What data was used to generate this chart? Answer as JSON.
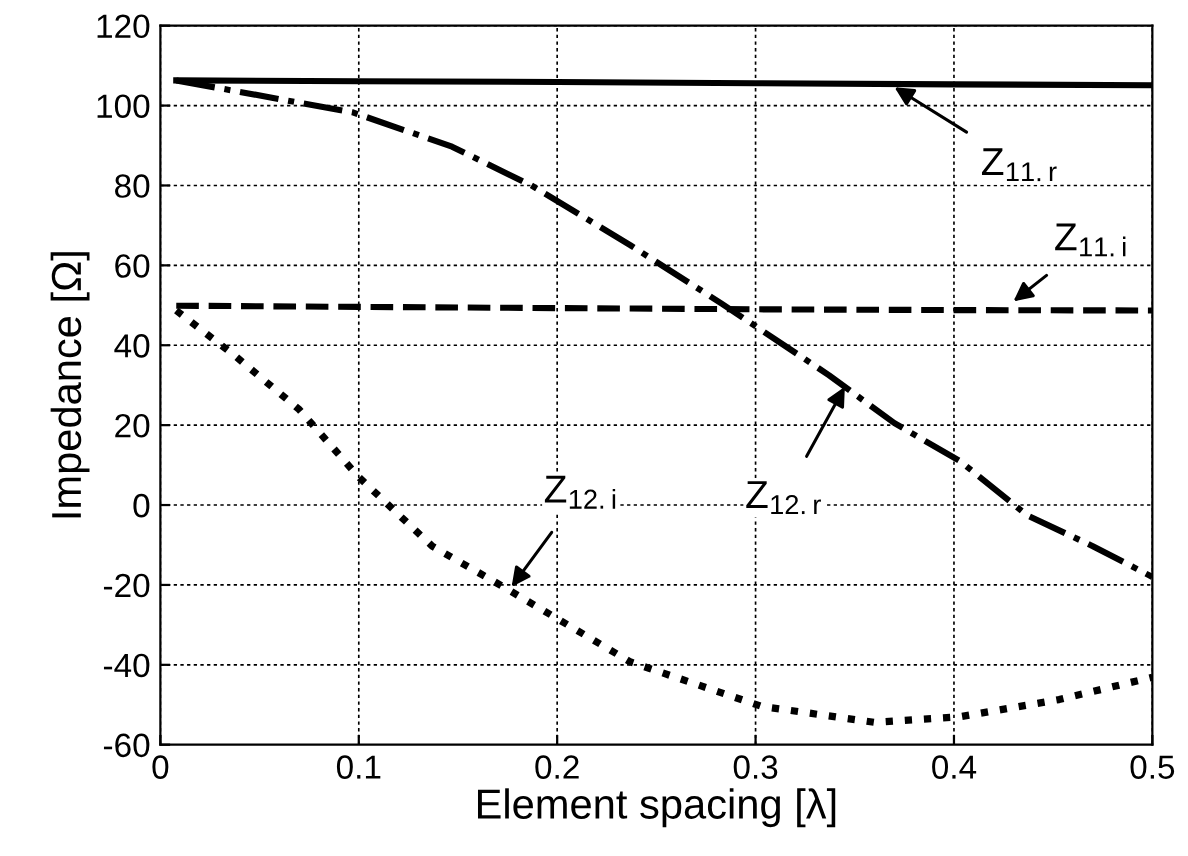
{
  "chart_data": {
    "type": "line",
    "xlabel": "Element spacing [λ]",
    "ylabel": "Impedance [Ω]",
    "xlim": [
      0,
      0.5
    ],
    "xticks": [
      0,
      0.1,
      0.2,
      0.3,
      0.4,
      0.5
    ],
    "ylim": [
      -60,
      120
    ],
    "yticks": [
      -60,
      -40,
      -20,
      0,
      20,
      40,
      60,
      80,
      100,
      120
    ],
    "grid": true,
    "legend": false,
    "series": [
      {
        "color": "#000000",
        "line_style": "solid",
        "x": [
          0.008,
          0.1,
          0.2,
          0.3,
          0.4,
          0.5
        ],
        "values": [
          106.3,
          106.1,
          105.9,
          105.6,
          105.3,
          105.1
        ]
      },
      {
        "color": "#000000",
        "line_style": "dashed",
        "x": [
          0.008,
          0.1,
          0.2,
          0.3,
          0.4,
          0.5
        ],
        "values": [
          49.9,
          49.6,
          49.3,
          49.0,
          48.8,
          48.7
        ]
      },
      {
        "color": "#000000",
        "line_style": "dashdot",
        "x": [
          0.008,
          0.097,
          0.147,
          0.187,
          0.237,
          0.283,
          0.337,
          0.37,
          0.403,
          0.437,
          0.47,
          0.5
        ],
        "values": [
          106.3,
          98.3,
          89.7,
          80,
          65,
          50.4,
          32.5,
          20.5,
          11,
          -2.6,
          -10.3,
          -18
        ]
      },
      {
        "color": "#000000",
        "line_style": "dotted",
        "x": [
          0.008,
          0.037,
          0.07,
          0.1,
          0.137,
          0.173,
          0.237,
          0.303,
          0.36,
          0.403,
          0.453,
          0.5
        ],
        "values": [
          48.7,
          37.6,
          23.9,
          7,
          -10.3,
          -20.5,
          -39.3,
          -50.4,
          -54.4,
          -53,
          -48.7,
          -43.1
        ]
      }
    ],
    "annotations": [
      {
        "text": "Z$_{11.r}$",
        "x": 0.37,
        "y": 104.6
      },
      {
        "text": "Z$_{11.i}$",
        "x": 0.43,
        "y": 51
      },
      {
        "text": "Z$_{12.r}$",
        "x": 0.345,
        "y": 29.6
      },
      {
        "text": "Z$_{12.i}$",
        "x": 0.177,
        "y": -20.5
      }
    ]
  }
}
